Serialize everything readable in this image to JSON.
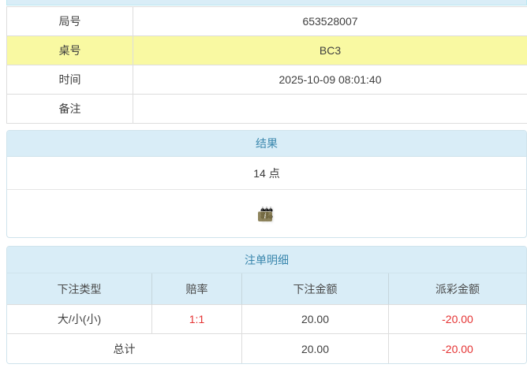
{
  "colors": {
    "panel_header_bg": "#d9edf7",
    "panel_header_text": "#3a87ad",
    "panel_border": "#cfe3ec",
    "row_highlight_yellow": "#f9f9a2",
    "table_border": "#dddddd",
    "negative_red": "#e53333"
  },
  "info_table": {
    "rows": [
      {
        "label": "局号",
        "value": "653528007"
      },
      {
        "label": "桌号",
        "value": "BC3"
      },
      {
        "label": "时间",
        "value": "2025-10-09 08:01:40"
      },
      {
        "label": "备注",
        "value": ""
      }
    ]
  },
  "result_panel": {
    "title": "结果",
    "points": "14 点",
    "dice": [
      6,
      6,
      2
    ],
    "info_icon": "i"
  },
  "bets_panel": {
    "title": "注单明细",
    "columns": [
      "下注类型",
      "赔率",
      "下注金额",
      "派彩金额"
    ],
    "rows": [
      {
        "type": "大/小(小)",
        "odds": "1:1",
        "bet": "20.00",
        "payout": "-20.00"
      }
    ],
    "total": {
      "label": "总计",
      "bet": "20.00",
      "payout": "-20.00"
    }
  }
}
